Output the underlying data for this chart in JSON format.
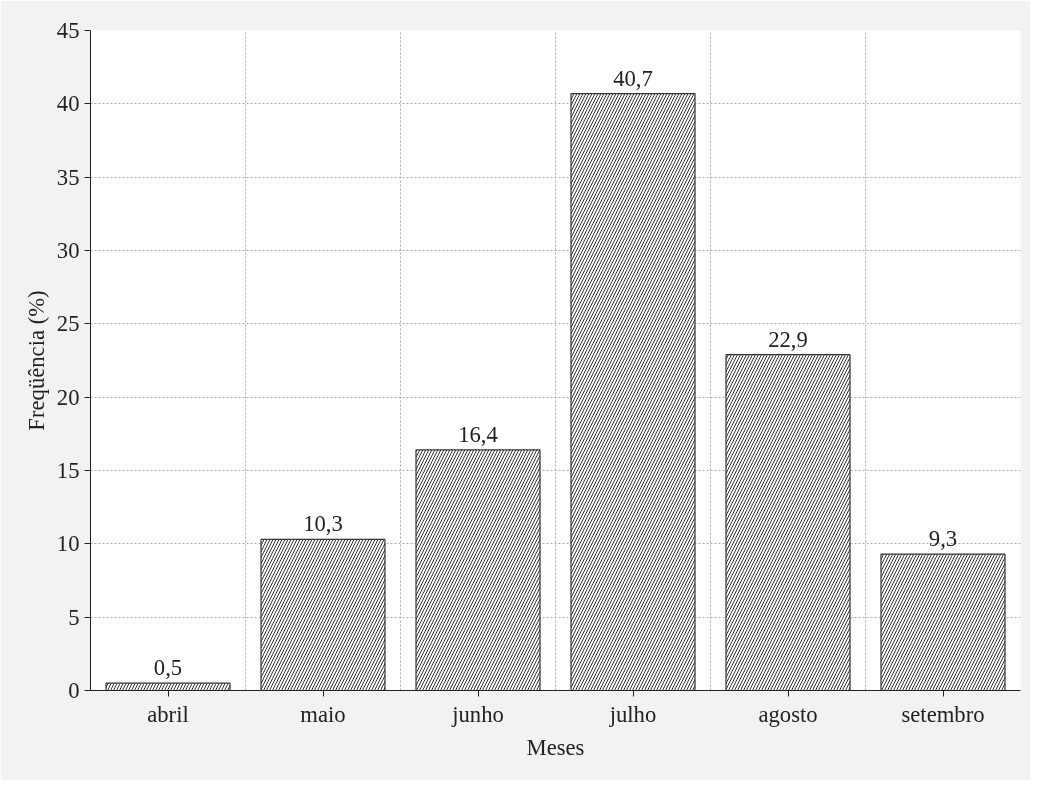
{
  "chart_data": {
    "type": "bar",
    "xlabel": "Meses",
    "ylabel": "Freqüência (%)",
    "categories": [
      "abril",
      "maio",
      "junho",
      "julho",
      "agosto",
      "setembro"
    ],
    "values": [
      0.5,
      10.3,
      16.4,
      40.7,
      22.9,
      9.3
    ],
    "value_labels": [
      "0,5",
      "10,3",
      "16,4",
      "40,7",
      "22,9",
      "9,3"
    ],
    "color": "#333333",
    "ylim": [
      0,
      45
    ],
    "yticks": [
      0,
      5,
      10,
      15,
      20,
      25,
      30,
      35,
      40,
      45
    ],
    "grid": true
  }
}
